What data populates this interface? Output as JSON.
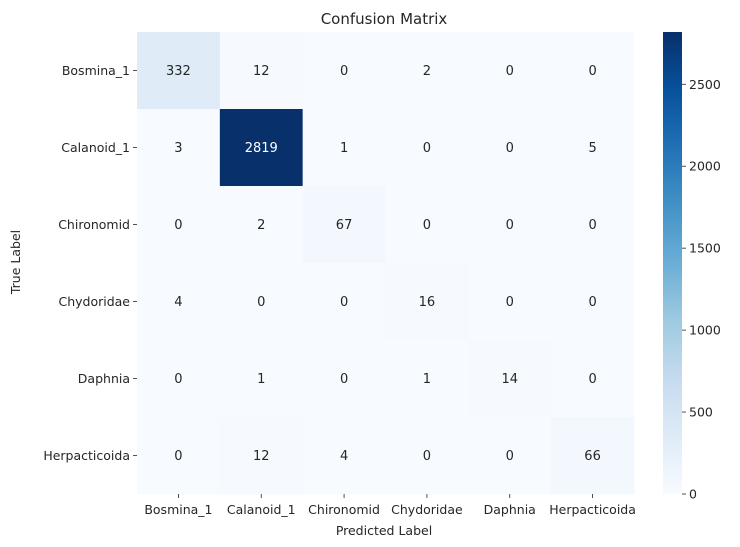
{
  "chart_data": {
    "type": "heatmap",
    "title": "Confusion Matrix",
    "xlabel": "Predicted Label",
    "ylabel": "True Label",
    "x_categories": [
      "Bosmina_1",
      "Calanoid_1",
      "Chironomid",
      "Chydoridae",
      "Daphnia",
      "Herpacticoida"
    ],
    "y_categories": [
      "Bosmina_1",
      "Calanoid_1",
      "Chironomid",
      "Chydoridae",
      "Daphnia",
      "Herpacticoida"
    ],
    "values": [
      [
        332,
        12,
        0,
        2,
        0,
        0
      ],
      [
        3,
        2819,
        1,
        0,
        0,
        5
      ],
      [
        0,
        2,
        67,
        0,
        0,
        0
      ],
      [
        4,
        0,
        0,
        16,
        0,
        0
      ],
      [
        0,
        1,
        0,
        1,
        14,
        0
      ],
      [
        0,
        12,
        4,
        0,
        0,
        66
      ]
    ],
    "colormap": "Blues",
    "colorbar": {
      "min": 0,
      "max": 2819,
      "ticks": [
        0,
        500,
        1000,
        1500,
        2000,
        2500
      ]
    },
    "annotations": true,
    "grid": false
  }
}
